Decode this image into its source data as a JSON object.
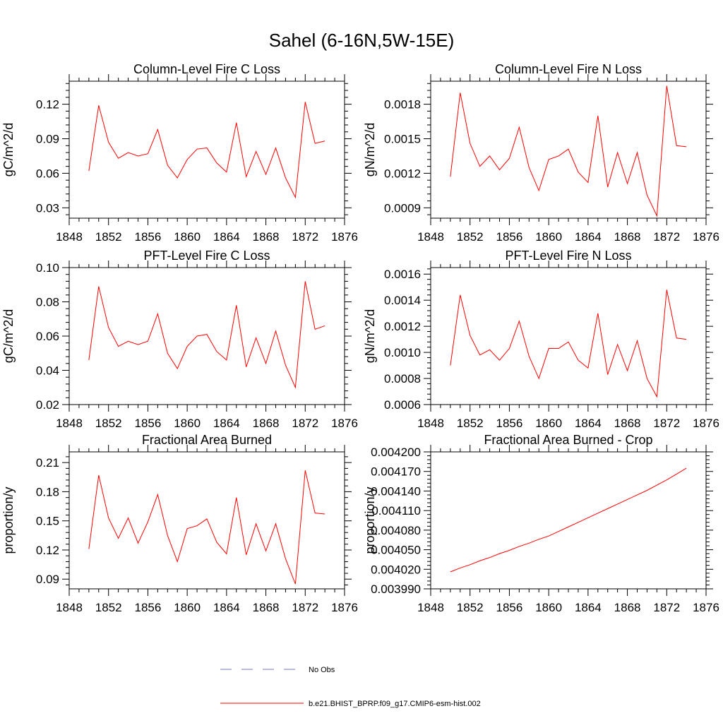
{
  "title": "Sahel (6-16N,5W-15E)",
  "colors": {
    "series": "#ff0000",
    "obs": "#7777cc",
    "axis": "#000000"
  },
  "chart_data": [
    {
      "type": "line",
      "title": "Column-Level Fire C Loss",
      "ylabel": "gC/m^2/d",
      "xlim": [
        1848,
        1876
      ],
      "ylim": [
        0.021,
        0.14
      ],
      "xticks": [
        1848,
        1852,
        1856,
        1860,
        1864,
        1868,
        1872,
        1876
      ],
      "xtick_labels": [
        "1848",
        "1852",
        "1856",
        "1860",
        "1864",
        "1868",
        "1872",
        "1876"
      ],
      "yticks": [
        0.03,
        0.06,
        0.09,
        0.12
      ],
      "ytick_labels": [
        "0.03",
        "0.06",
        "0.09",
        "0.12"
      ],
      "x": [
        1850,
        1851,
        1852,
        1853,
        1854,
        1855,
        1856,
        1857,
        1858,
        1859,
        1860,
        1861,
        1862,
        1863,
        1864,
        1865,
        1866,
        1867,
        1868,
        1869,
        1870,
        1871,
        1872,
        1873,
        1874
      ],
      "series": [
        {
          "name": "b.e21.BHIST_BPRP.f09_g17.CMIP6-esm-hist.002",
          "values": [
            0.062,
            0.119,
            0.087,
            0.073,
            0.078,
            0.075,
            0.077,
            0.098,
            0.067,
            0.056,
            0.072,
            0.081,
            0.082,
            0.069,
            0.061,
            0.104,
            0.057,
            0.079,
            0.059,
            0.082,
            0.056,
            0.039,
            0.122,
            0.086,
            0.088
          ]
        }
      ]
    },
    {
      "type": "line",
      "title": "Column-Level Fire N Loss",
      "ylabel": "gN/m^2/d",
      "xlim": [
        1848,
        1876
      ],
      "ylim": [
        0.00081,
        0.002
      ],
      "xticks": [
        1848,
        1852,
        1856,
        1860,
        1864,
        1868,
        1872,
        1876
      ],
      "xtick_labels": [
        "1848",
        "1852",
        "1856",
        "1860",
        "1864",
        "1868",
        "1872",
        "1876"
      ],
      "yticks": [
        0.0009,
        0.0012,
        0.0015,
        0.0018
      ],
      "ytick_labels": [
        "0.0009",
        "0.0012",
        "0.0015",
        "0.0018"
      ],
      "x": [
        1850,
        1851,
        1852,
        1853,
        1854,
        1855,
        1856,
        1857,
        1858,
        1859,
        1860,
        1861,
        1862,
        1863,
        1864,
        1865,
        1866,
        1867,
        1868,
        1869,
        1870,
        1871,
        1872,
        1873,
        1874
      ],
      "series": [
        {
          "name": "b.e21.BHIST_BPRP.f09_g17.CMIP6-esm-hist.002",
          "values": [
            0.00117,
            0.0019,
            0.00146,
            0.00126,
            0.00135,
            0.00123,
            0.00133,
            0.0016,
            0.00125,
            0.00105,
            0.00132,
            0.00135,
            0.00141,
            0.00121,
            0.00112,
            0.0017,
            0.00108,
            0.00138,
            0.00111,
            0.00138,
            0.00101,
            0.00083,
            0.00196,
            0.00144,
            0.00143
          ]
        }
      ]
    },
    {
      "type": "line",
      "title": "PFT-Level Fire C Loss",
      "ylabel": "gC/m^2/d",
      "xlim": [
        1848,
        1876
      ],
      "ylim": [
        0.02,
        0.1
      ],
      "xticks": [
        1848,
        1852,
        1856,
        1860,
        1864,
        1868,
        1872,
        1876
      ],
      "xtick_labels": [
        "1848",
        "1852",
        "1856",
        "1860",
        "1864",
        "1868",
        "1872",
        "1876"
      ],
      "yticks": [
        0.02,
        0.04,
        0.06,
        0.08,
        0.1
      ],
      "ytick_labels": [
        "0.02",
        "0.04",
        "0.06",
        "0.08",
        "0.10"
      ],
      "x": [
        1850,
        1851,
        1852,
        1853,
        1854,
        1855,
        1856,
        1857,
        1858,
        1859,
        1860,
        1861,
        1862,
        1863,
        1864,
        1865,
        1866,
        1867,
        1868,
        1869,
        1870,
        1871,
        1872,
        1873,
        1874
      ],
      "series": [
        {
          "name": "b.e21.BHIST_BPRP.f09_g17.CMIP6-esm-hist.002",
          "values": [
            0.046,
            0.089,
            0.065,
            0.054,
            0.057,
            0.055,
            0.057,
            0.073,
            0.05,
            0.041,
            0.054,
            0.06,
            0.061,
            0.051,
            0.046,
            0.078,
            0.042,
            0.059,
            0.044,
            0.063,
            0.043,
            0.03,
            0.092,
            0.064,
            0.066
          ]
        }
      ]
    },
    {
      "type": "line",
      "title": "PFT-Level Fire N Loss",
      "ylabel": "gN/m^2/d",
      "xlim": [
        1848,
        1876
      ],
      "ylim": [
        0.0006,
        0.00165
      ],
      "xticks": [
        1848,
        1852,
        1856,
        1860,
        1864,
        1868,
        1872,
        1876
      ],
      "xtick_labels": [
        "1848",
        "1852",
        "1856",
        "1860",
        "1864",
        "1868",
        "1872",
        "1876"
      ],
      "yticks": [
        0.0006,
        0.0008,
        0.001,
        0.0012,
        0.0014,
        0.0016
      ],
      "ytick_labels": [
        "0.0006",
        "0.0008",
        "0.0010",
        "0.0012",
        "0.0014",
        "0.0016"
      ],
      "x": [
        1850,
        1851,
        1852,
        1853,
        1854,
        1855,
        1856,
        1857,
        1858,
        1859,
        1860,
        1861,
        1862,
        1863,
        1864,
        1865,
        1866,
        1867,
        1868,
        1869,
        1870,
        1871,
        1872,
        1873,
        1874
      ],
      "series": [
        {
          "name": "b.e21.BHIST_BPRP.f09_g17.CMIP6-esm-hist.002",
          "values": [
            0.0009,
            0.00144,
            0.00113,
            0.00098,
            0.00102,
            0.00094,
            0.00103,
            0.00124,
            0.00097,
            0.0008,
            0.00103,
            0.00103,
            0.00108,
            0.00094,
            0.00088,
            0.0013,
            0.00083,
            0.00106,
            0.00086,
            0.00109,
            0.0008,
            0.00066,
            0.00148,
            0.00111,
            0.0011
          ]
        }
      ]
    },
    {
      "type": "line",
      "title": "Fractional Area Burned",
      "ylabel": "proportion/y",
      "xlim": [
        1848,
        1876
      ],
      "ylim": [
        0.08,
        0.221
      ],
      "xticks": [
        1848,
        1852,
        1856,
        1860,
        1864,
        1868,
        1872,
        1876
      ],
      "xtick_labels": [
        "1848",
        "1852",
        "1856",
        "1860",
        "1864",
        "1868",
        "1872",
        "1876"
      ],
      "yticks": [
        0.09,
        0.12,
        0.15,
        0.18,
        0.21
      ],
      "ytick_labels": [
        "0.09",
        "0.12",
        "0.15",
        "0.18",
        "0.21"
      ],
      "x": [
        1850,
        1851,
        1852,
        1853,
        1854,
        1855,
        1856,
        1857,
        1858,
        1859,
        1860,
        1861,
        1862,
        1863,
        1864,
        1865,
        1866,
        1867,
        1868,
        1869,
        1870,
        1871,
        1872,
        1873,
        1874
      ],
      "series": [
        {
          "name": "b.e21.BHIST_BPRP.f09_g17.CMIP6-esm-hist.002",
          "values": [
            0.121,
            0.197,
            0.153,
            0.132,
            0.153,
            0.127,
            0.149,
            0.177,
            0.135,
            0.108,
            0.142,
            0.145,
            0.152,
            0.128,
            0.116,
            0.174,
            0.115,
            0.147,
            0.119,
            0.147,
            0.111,
            0.085,
            0.202,
            0.158,
            0.157
          ]
        }
      ]
    },
    {
      "type": "line",
      "title": "Fractional Area Burned - Crop",
      "ylabel": "proportion/y",
      "xlim": [
        1848,
        1876
      ],
      "ylim": [
        0.00399,
        0.0042
      ],
      "xticks": [
        1848,
        1852,
        1856,
        1860,
        1864,
        1868,
        1872,
        1876
      ],
      "xtick_labels": [
        "1848",
        "1852",
        "1856",
        "1860",
        "1864",
        "1868",
        "1872",
        "1876"
      ],
      "yticks": [
        0.00399,
        0.00402,
        0.00405,
        0.00408,
        0.00411,
        0.00414,
        0.00417,
        0.0042
      ],
      "ytick_labels": [
        "0.003990",
        "0.004020",
        "0.004050",
        "0.004080",
        "0.004110",
        "0.004140",
        "0.004170",
        "0.004200"
      ],
      "x": [
        1850,
        1851,
        1852,
        1853,
        1854,
        1855,
        1856,
        1857,
        1858,
        1859,
        1860,
        1861,
        1862,
        1863,
        1864,
        1865,
        1866,
        1867,
        1868,
        1869,
        1870,
        1871,
        1872,
        1873,
        1874
      ],
      "series": [
        {
          "name": "b.e21.BHIST_BPRP.f09_g17.CMIP6-esm-hist.002",
          "values": [
            0.004016,
            0.004022,
            0.004027,
            0.004033,
            0.004038,
            0.004044,
            0.004049,
            0.004055,
            0.00406,
            0.004066,
            0.004071,
            0.004078,
            0.004085,
            0.004092,
            0.004099,
            0.004106,
            0.004113,
            0.00412,
            0.004127,
            0.004134,
            0.004141,
            0.004149,
            0.004157,
            0.004166,
            0.004175
          ]
        }
      ]
    }
  ],
  "legend": [
    {
      "label": "No Obs",
      "style": "dashed"
    },
    {
      "label": "b.e21.BHIST_BPRP.f09_g17.CMIP6-esm-hist.002",
      "style": "solid"
    }
  ]
}
